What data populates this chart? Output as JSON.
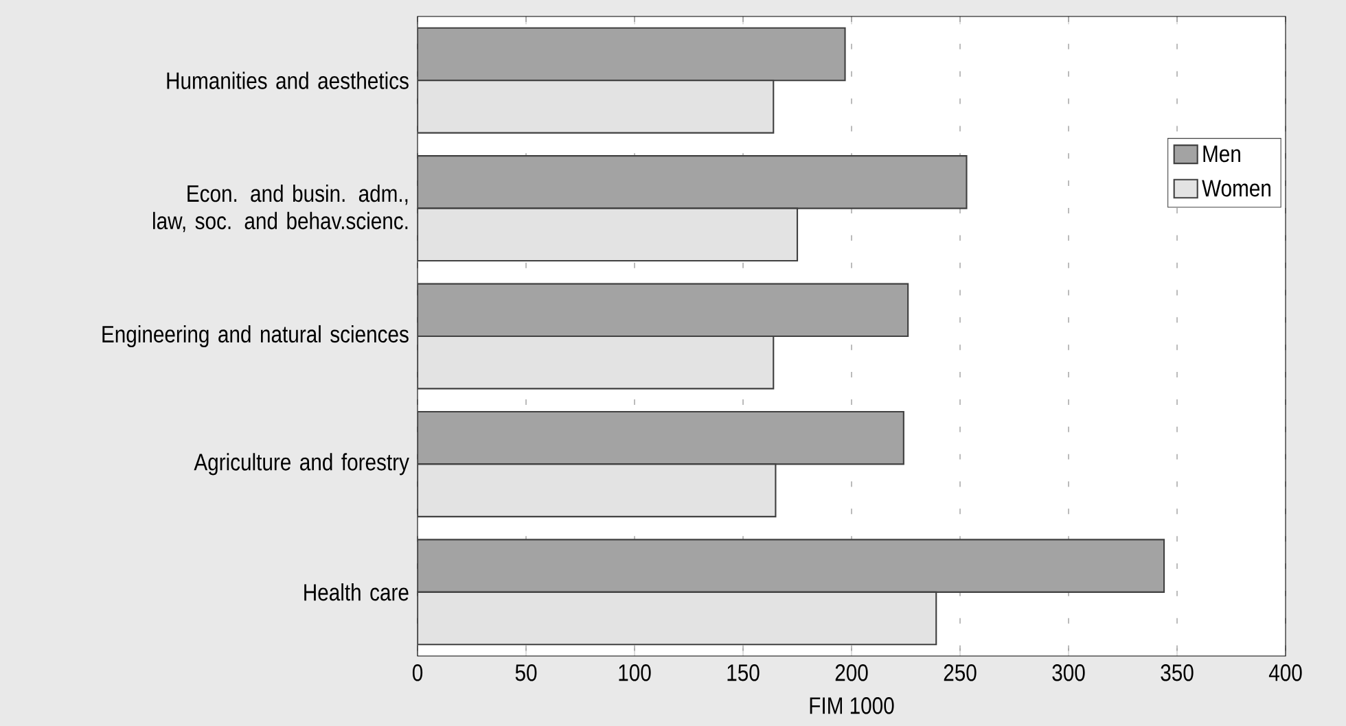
{
  "chart_data": {
    "type": "bar",
    "orientation": "horizontal",
    "xlabel": "FIM 1000",
    "categories": [
      "Humanities and aesthetics",
      "Econ. and busin. adm., law, soc. and behav.scienc.",
      "Engineering and natural sciences",
      "Agriculture and forestry",
      "Health care"
    ],
    "series": [
      {
        "name": "Men",
        "color": "#a3a3a3",
        "values": [
          197,
          253,
          226,
          224,
          344
        ]
      },
      {
        "name": "Women",
        "color": "#e3e3e3",
        "values": [
          164,
          175,
          164,
          165,
          239
        ]
      }
    ],
    "xlim": [
      0,
      400
    ],
    "xticks": [
      0,
      50,
      100,
      150,
      200,
      250,
      300,
      350,
      400
    ],
    "grid": "x",
    "legend": "top right"
  }
}
